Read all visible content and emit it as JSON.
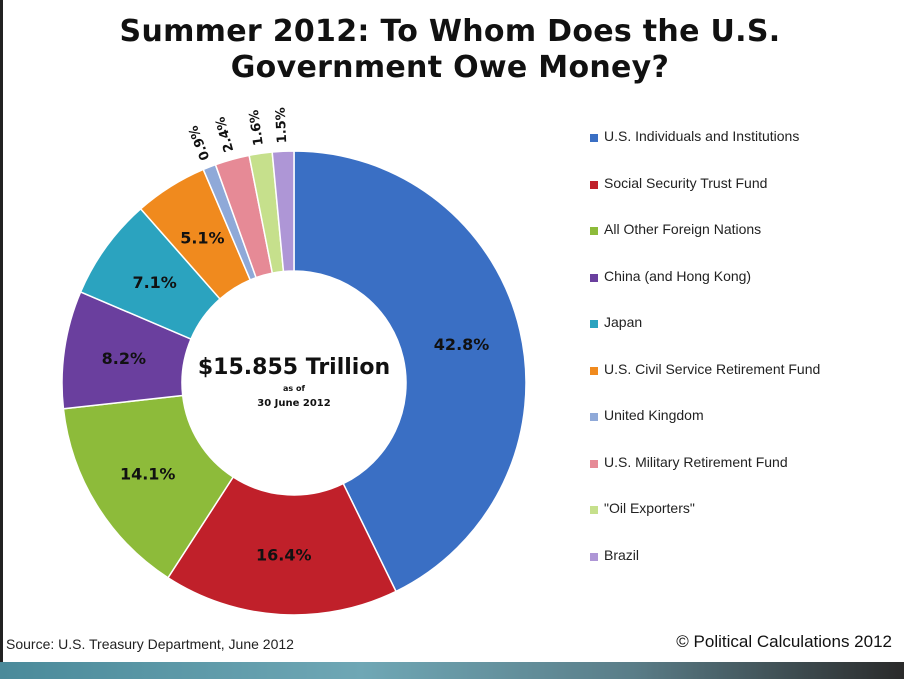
{
  "title_line1": "Summer 2012: To Whom Does the U.S.",
  "title_line2": "Government Owe Money?",
  "center": {
    "total": "$15.855 Trillion",
    "as_of": "as of",
    "date": "30 June 2012"
  },
  "chart_data": {
    "type": "pie",
    "title": "Summer 2012: To Whom Does the U.S. Government Owe Money?",
    "donut": true,
    "legend_position": "right",
    "slices": [
      {
        "name": "U.S. Individuals and Institutions",
        "value": 42.8,
        "label": "42.8%",
        "color": "#3a6fc4"
      },
      {
        "name": "Social Security Trust Fund",
        "value": 16.4,
        "label": "16.4%",
        "color": "#c0202a"
      },
      {
        "name": "All Other Foreign Nations",
        "value": 14.1,
        "label": "14.1%",
        "color": "#8dbb3a"
      },
      {
        "name": "China (and Hong Kong)",
        "value": 8.2,
        "label": "8.2%",
        "color": "#6a3f9e"
      },
      {
        "name": "Japan",
        "value": 7.1,
        "label": "7.1%",
        "color": "#2ba3bf"
      },
      {
        "name": "U.S. Civil Service Retirement Fund",
        "value": 5.1,
        "label": "5.1%",
        "color": "#f08a1e"
      },
      {
        "name": "United Kingdom",
        "value": 0.9,
        "label": "0.9%",
        "color": "#8fa9d8"
      },
      {
        "name": "U.S. Military Retirement Fund",
        "value": 2.4,
        "label": "2.4%",
        "color": "#e68a96"
      },
      {
        "name": "\"Oil Exporters\"",
        "value": 1.6,
        "label": "1.6%",
        "color": "#c6e08c"
      },
      {
        "name": "Brazil",
        "value": 1.5,
        "label": "1.5%",
        "color": "#ae96d6"
      }
    ]
  },
  "source": "Source: U.S. Treasury Department, June 2012",
  "copyright": "© Political Calculations 2012"
}
